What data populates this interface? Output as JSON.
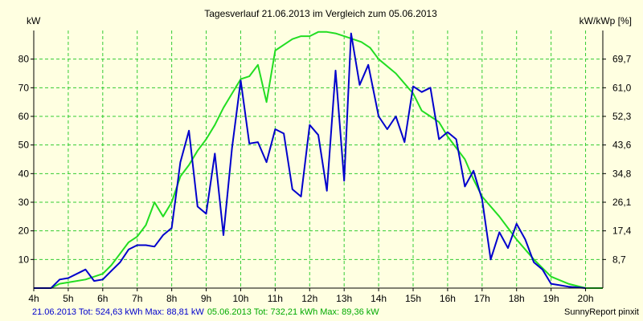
{
  "chart_data": {
    "type": "line",
    "title": "Tagesverlauf 21.06.2013 im Vergleich zum 05.06.2013",
    "ylabel_left": "kW",
    "ylabel_right": "kW/kWp [%]",
    "xlim": [
      4,
      20.5
    ],
    "ylim": [
      0,
      90
    ],
    "x_ticks": [
      "4h",
      "5h",
      "6h",
      "7h",
      "8h",
      "9h",
      "10h",
      "11h",
      "12h",
      "13h",
      "14h",
      "15h",
      "16h",
      "17h",
      "18h",
      "19h",
      "20h"
    ],
    "y_ticks_left": [
      "10",
      "20",
      "30",
      "40",
      "50",
      "60",
      "70",
      "80"
    ],
    "y_ticks_right": [
      "8,7",
      "17,4",
      "26,1",
      "34,8",
      "43,6",
      "52,3",
      "61,0",
      "69,7"
    ],
    "grid": true,
    "colors": {
      "background": "#ffffe1",
      "grid": "#33cc33",
      "axis": "#000000",
      "series_a": "#0000cc",
      "series_b": "#22dd22"
    },
    "series": [
      {
        "name": "21.06.2013",
        "color": "#0000cc",
        "points": [
          [
            4.0,
            0
          ],
          [
            4.5,
            0
          ],
          [
            4.75,
            3
          ],
          [
            5.0,
            3.5
          ],
          [
            5.25,
            5
          ],
          [
            5.5,
            6.5
          ],
          [
            5.75,
            2.5
          ],
          [
            6.0,
            3
          ],
          [
            6.25,
            6
          ],
          [
            6.5,
            9
          ],
          [
            6.75,
            13.5
          ],
          [
            7.0,
            15
          ],
          [
            7.25,
            15
          ],
          [
            7.5,
            14.5
          ],
          [
            7.75,
            18.5
          ],
          [
            8.0,
            21
          ],
          [
            8.25,
            44
          ],
          [
            8.5,
            55
          ],
          [
            8.75,
            28.5
          ],
          [
            9.0,
            26
          ],
          [
            9.25,
            47
          ],
          [
            9.5,
            18.5
          ],
          [
            9.75,
            49
          ],
          [
            10.0,
            72.5
          ],
          [
            10.25,
            50.5
          ],
          [
            10.5,
            51
          ],
          [
            10.75,
            44
          ],
          [
            11.0,
            55.5
          ],
          [
            11.25,
            54
          ],
          [
            11.5,
            34.5
          ],
          [
            11.75,
            32
          ],
          [
            12.0,
            57
          ],
          [
            12.25,
            53.5
          ],
          [
            12.5,
            34
          ],
          [
            12.75,
            76
          ],
          [
            13.0,
            37.5
          ],
          [
            13.2,
            89
          ],
          [
            13.45,
            71
          ],
          [
            13.7,
            78
          ],
          [
            14.0,
            60
          ],
          [
            14.25,
            55.5
          ],
          [
            14.5,
            60
          ],
          [
            14.75,
            51
          ],
          [
            15.0,
            70.5
          ],
          [
            15.25,
            68.5
          ],
          [
            15.5,
            70
          ],
          [
            15.75,
            52
          ],
          [
            16.0,
            54.5
          ],
          [
            16.25,
            52
          ],
          [
            16.5,
            35.5
          ],
          [
            16.75,
            41
          ],
          [
            17.0,
            31
          ],
          [
            17.25,
            10
          ],
          [
            17.5,
            19.5
          ],
          [
            17.75,
            14
          ],
          [
            18.0,
            22.5
          ],
          [
            18.25,
            17
          ],
          [
            18.5,
            9
          ],
          [
            18.75,
            6.5
          ],
          [
            19.0,
            1.5
          ],
          [
            19.25,
            1
          ],
          [
            19.5,
            0.5
          ],
          [
            20.0,
            0
          ]
        ]
      },
      {
        "name": "05.06.2013",
        "color": "#22dd22",
        "points": [
          [
            4.0,
            0
          ],
          [
            4.5,
            0
          ],
          [
            4.75,
            1.5
          ],
          [
            5.0,
            2
          ],
          [
            5.5,
            3
          ],
          [
            6.0,
            5
          ],
          [
            6.25,
            8
          ],
          [
            6.5,
            12
          ],
          [
            6.75,
            16
          ],
          [
            7.0,
            18
          ],
          [
            7.25,
            22
          ],
          [
            7.5,
            30
          ],
          [
            7.75,
            25
          ],
          [
            8.0,
            30
          ],
          [
            8.25,
            39
          ],
          [
            8.5,
            43
          ],
          [
            8.75,
            48
          ],
          [
            9.0,
            52
          ],
          [
            9.25,
            57
          ],
          [
            9.5,
            63
          ],
          [
            9.75,
            68
          ],
          [
            10.0,
            73
          ],
          [
            10.25,
            74
          ],
          [
            10.5,
            78
          ],
          [
            10.75,
            65
          ],
          [
            11.0,
            83
          ],
          [
            11.25,
            85
          ],
          [
            11.5,
            87
          ],
          [
            11.75,
            88
          ],
          [
            12.0,
            88
          ],
          [
            12.25,
            89.5
          ],
          [
            12.5,
            89.5
          ],
          [
            12.75,
            89
          ],
          [
            13.0,
            88
          ],
          [
            13.25,
            87
          ],
          [
            13.5,
            86
          ],
          [
            13.75,
            84
          ],
          [
            14.0,
            80
          ],
          [
            14.5,
            75
          ],
          [
            15.0,
            68
          ],
          [
            15.25,
            62
          ],
          [
            15.5,
            60
          ],
          [
            15.75,
            58
          ],
          [
            16.0,
            53
          ],
          [
            16.5,
            45
          ],
          [
            16.75,
            38
          ],
          [
            17.0,
            32
          ],
          [
            17.5,
            25
          ],
          [
            18.0,
            17
          ],
          [
            18.5,
            10
          ],
          [
            18.75,
            7
          ],
          [
            19.0,
            4
          ],
          [
            19.5,
            1.5
          ],
          [
            20.0,
            0
          ],
          [
            20.5,
            0
          ]
        ]
      }
    ]
  },
  "footer": {
    "series_a_stats": "21.06.2013 Tot: 524,63 kWh Max: 88,81 kW",
    "series_b_stats": "05.06.2013 Tot: 732,21 kWh Max: 89,36 kW",
    "credit": "SunnyReport pinxit"
  }
}
